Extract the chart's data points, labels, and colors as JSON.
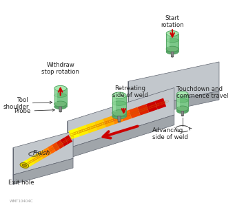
{
  "bg_color": "#ffffff",
  "tool_body_color": "#7dc88a",
  "tool_body_dark": "#4a9e5a",
  "tool_body_light": "#a8e8b0",
  "weld_colors": [
    "#cc0000",
    "#cc0000",
    "#dd2200",
    "#ee4400",
    "#ff6600",
    "#ff8800",
    "#ffaa00",
    "#ffcc00",
    "#ffdd00",
    "#ffee00",
    "#ffff00"
  ],
  "arrow_color": "#cc0000",
  "text_color": "#222222",
  "watermark": "WMT10404C",
  "plate_top": "#c2c7cc",
  "plate_front": "#a0a5aa",
  "plate_left": "#b0b5ba",
  "plate_edge": "#707580",
  "labels": {
    "start_rotation": "Start\nrotation",
    "touchdown": "Touchdown and\ncommence travel",
    "retreating": "Retreating\nside of weld",
    "advancing": "Advancing\nside of weld",
    "withdraw": "Withdraw\nstop rotation",
    "tool_shoulder": "Tool\nshoulder",
    "probe": "Probe",
    "finish": "Finish",
    "exit_hole": "Exit hole"
  },
  "fontsize": 6.2
}
